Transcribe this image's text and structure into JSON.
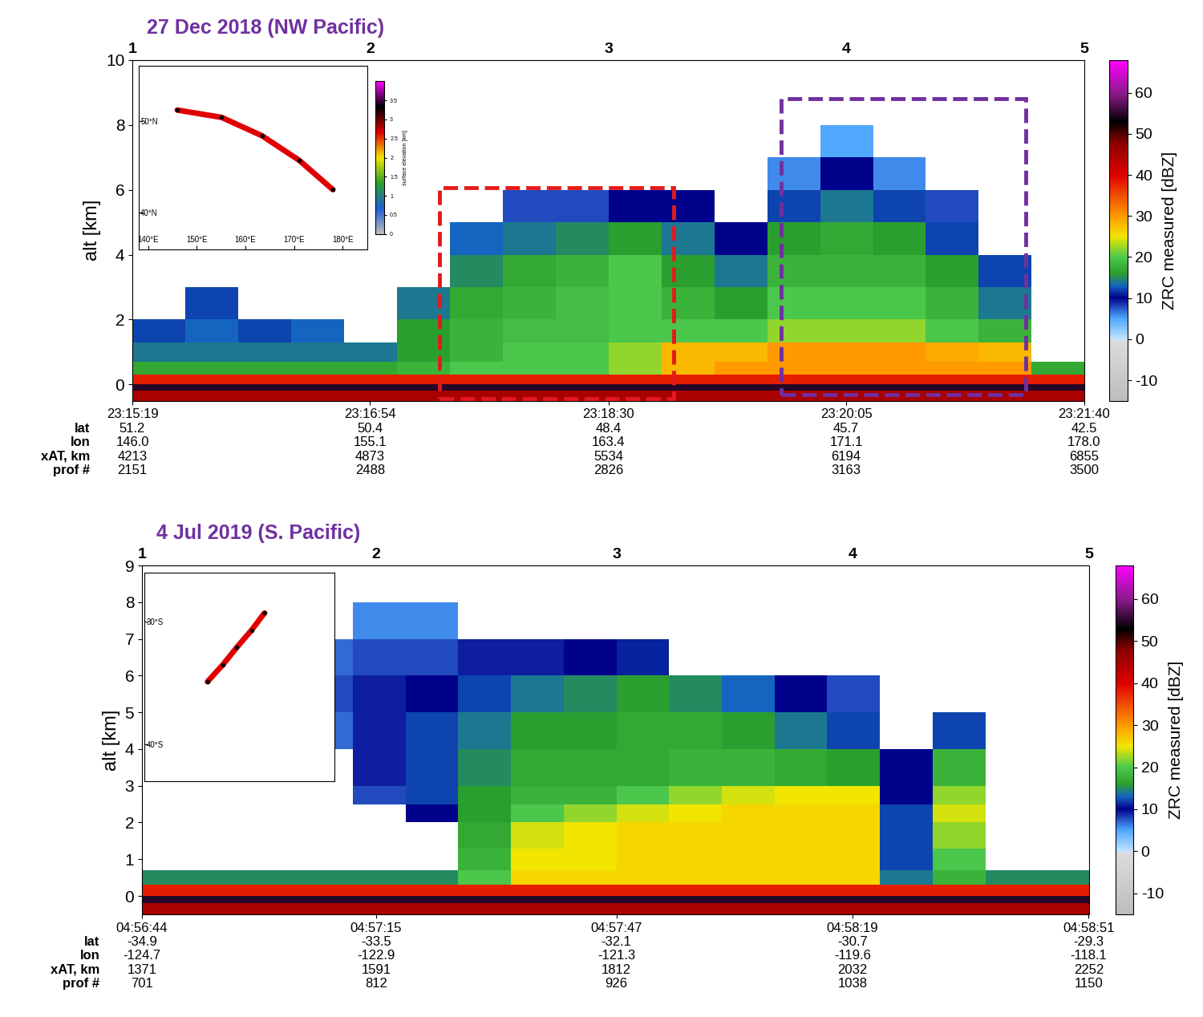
{
  "chart_data": [
    {
      "type": "heatmap",
      "title": "27 Dec 2018 (NW Pacific)",
      "y_label": "alt [km]",
      "xlim": [
        2151,
        3500
      ],
      "ylim": [
        -0.5,
        10
      ],
      "yticks": [
        0,
        2,
        4,
        6,
        8,
        10
      ],
      "xticks": [
        {
          "value": 2151,
          "label": "23:15:19\n51.2\n146.0\n4213\n2151"
        },
        {
          "value": 2488,
          "label": "23:16:54\n50.4\n155.1\n4873\n2488"
        },
        {
          "value": 2826,
          "label": "23:18:30\n48.4\n163.4\n5534\n2826"
        },
        {
          "value": 3163,
          "label": "23:20:05\n45.7\n171.1\n6194\n3163"
        },
        {
          "value": 3500,
          "label": "23:21:40\n42.5\n178.0\n6855\n3500"
        }
      ],
      "row_names": [
        "lat",
        "lon",
        "xAT, km",
        "prof #"
      ],
      "top_ticks": [
        1,
        2,
        3,
        4,
        5
      ],
      "x_edges": [
        2151,
        2226,
        2301,
        2376,
        2451,
        2526,
        2601,
        2676,
        2751,
        2826,
        2901,
        2976,
        3051,
        3126,
        3201,
        3276,
        3351,
        3426,
        3501
      ],
      "alt_edges": [
        -0.5,
        -0.2,
        0,
        0.3,
        0.7,
        1.3,
        2,
        3,
        4,
        5,
        6,
        7,
        8,
        10
      ],
      "cells": [
        [
          45,
          45,
          45,
          45,
          45,
          45,
          45,
          45,
          45,
          45,
          45,
          45,
          45,
          45,
          45,
          45,
          45,
          45
        ],
        [
          55,
          55,
          55,
          55,
          55,
          55,
          55,
          55,
          55,
          55,
          55,
          55,
          55,
          55,
          55,
          55,
          55,
          55
        ],
        [
          38,
          38,
          38,
          38,
          38,
          38,
          38,
          38,
          38,
          38,
          38,
          38,
          38,
          38,
          38,
          38,
          38,
          38
        ],
        [
          17,
          17,
          17,
          17,
          17,
          18,
          20,
          20,
          20,
          22,
          28,
          30,
          30,
          30,
          30,
          30,
          30,
          17
        ],
        [
          14,
          14,
          14,
          14,
          14,
          16,
          18,
          20,
          20,
          22,
          28,
          28,
          30,
          30,
          30,
          29,
          28,
          null
        ],
        [
          12,
          13,
          12,
          13,
          null,
          16,
          18,
          19,
          19,
          20,
          20,
          20,
          22,
          22,
          22,
          20,
          18,
          null
        ],
        [
          null,
          12,
          null,
          null,
          null,
          14,
          17,
          18,
          19,
          20,
          18,
          16,
          20,
          20,
          20,
          18,
          14,
          null
        ],
        [
          null,
          null,
          null,
          null,
          null,
          null,
          15,
          17,
          18,
          20,
          16,
          14,
          18,
          18,
          18,
          16,
          12,
          null
        ],
        [
          null,
          null,
          null,
          null,
          null,
          null,
          13,
          14,
          15,
          16,
          14,
          10,
          16,
          17,
          16,
          12,
          null,
          null
        ],
        [
          null,
          null,
          null,
          null,
          null,
          null,
          null,
          8,
          8,
          10,
          10,
          null,
          12,
          14,
          12,
          8,
          null,
          null
        ],
        [
          null,
          null,
          null,
          null,
          null,
          null,
          null,
          null,
          null,
          null,
          null,
          null,
          6,
          10,
          6,
          null,
          null,
          null
        ],
        [
          null,
          null,
          null,
          null,
          null,
          null,
          null,
          null,
          null,
          null,
          null,
          null,
          null,
          5,
          null,
          null,
          null,
          null
        ],
        [
          null,
          null,
          null,
          null,
          null,
          null,
          null,
          null,
          null,
          null,
          null,
          null,
          null,
          null,
          null,
          null,
          null,
          null
        ]
      ],
      "colorbar": {
        "label": "ZRC measured [dBZ]",
        "range": [
          -15,
          68
        ],
        "ticks": [
          -10,
          0,
          10,
          20,
          30,
          40,
          50,
          60
        ]
      },
      "regions": [
        {
          "color": "#e31a1c",
          "x": [
            2586,
            2918
          ],
          "alt": [
            -0.44,
            6.07
          ]
        },
        {
          "color": "#7030a0",
          "x": [
            3071,
            3418
          ],
          "alt": [
            -0.3,
            8.82
          ]
        }
      ],
      "inset": {
        "xlim": [
          138,
          185
        ],
        "ylim": [
          36,
          56
        ],
        "xticks": [
          {
            "value": 140,
            "label": "140°E"
          },
          {
            "value": 150,
            "label": "150°E"
          },
          {
            "value": 160,
            "label": "160°E"
          },
          {
            "value": 170,
            "label": "170°E"
          },
          {
            "value": 180,
            "label": "180°E"
          }
        ],
        "yticks": [
          {
            "value": 40,
            "label": "40°N"
          },
          {
            "value": 50,
            "label": "50°N"
          }
        ],
        "track": {
          "lon": [
            146.0,
            155.1,
            163.4,
            171.1,
            178.0
          ],
          "lat": [
            51.2,
            50.4,
            48.4,
            45.7,
            42.5
          ],
          "color": "#e00000"
        },
        "colorbar": {
          "label": "surface elevation [km]",
          "range": [
            0,
            4
          ],
          "ticks": [
            0,
            0.5,
            1,
            1.5,
            2,
            2.5,
            3,
            3.5
          ]
        }
      }
    },
    {
      "type": "heatmap",
      "title": "4 Jul 2019 (S. Pacific)",
      "y_label": "alt [km]",
      "xlim": [
        701,
        1150
      ],
      "ylim": [
        -0.5,
        9
      ],
      "yticks": [
        0,
        1,
        2,
        3,
        4,
        5,
        6,
        7,
        8,
        9
      ],
      "xticks": [
        {
          "value": 701,
          "label": "04:56:44\n-34.9\n-124.7\n1371\n701"
        },
        {
          "value": 812,
          "label": "04:57:15\n-33.5\n-122.9\n1591\n812"
        },
        {
          "value": 926,
          "label": "04:57:47\n-32.1\n-121.3\n1812\n926"
        },
        {
          "value": 1038,
          "label": "04:58:19\n-30.7\n-119.6\n2032\n1038"
        },
        {
          "value": 1150,
          "label": "04:58:51\n-29.3\n-118.1\n2252\n1150"
        }
      ],
      "row_names": [
        "lat",
        "lon",
        "xAT, km",
        "prof #"
      ],
      "top_ticks": [
        1,
        2,
        3,
        4,
        5
      ],
      "x_edges": [
        701,
        726,
        751,
        776,
        801,
        826,
        851,
        876,
        901,
        926,
        951,
        976,
        1001,
        1026,
        1051,
        1076,
        1101,
        1126,
        1151
      ],
      "alt_edges": [
        -0.5,
        -0.2,
        0,
        0.3,
        0.7,
        1.3,
        2,
        2.5,
        3,
        4,
        5,
        6,
        7,
        8,
        9
      ],
      "cells": [
        [
          45,
          45,
          45,
          45,
          45,
          45,
          45,
          45,
          45,
          45,
          45,
          45,
          45,
          45,
          45,
          45,
          45,
          45
        ],
        [
          55,
          55,
          55,
          55,
          55,
          55,
          55,
          55,
          55,
          55,
          55,
          55,
          55,
          55,
          55,
          55,
          55,
          55
        ],
        [
          38,
          38,
          38,
          38,
          38,
          38,
          38,
          38,
          38,
          38,
          38,
          38,
          38,
          38,
          38,
          38,
          38,
          38
        ],
        [
          15,
          15,
          15,
          15,
          15,
          15,
          20,
          26,
          26,
          26,
          26,
          26,
          26,
          26,
          14,
          18,
          15,
          15
        ],
        [
          null,
          null,
          null,
          null,
          null,
          null,
          18,
          25,
          25,
          26,
          26,
          26,
          26,
          26,
          12,
          20,
          null,
          null
        ],
        [
          null,
          null,
          null,
          null,
          null,
          null,
          17,
          24,
          25,
          26,
          26,
          26,
          26,
          26,
          12,
          22,
          null,
          null
        ],
        [
          null,
          null,
          null,
          null,
          null,
          10,
          16,
          20,
          22,
          24,
          25,
          26,
          26,
          26,
          12,
          24,
          null,
          null
        ],
        [
          null,
          null,
          null,
          null,
          8,
          12,
          16,
          18,
          18,
          20,
          22,
          24,
          25,
          25,
          10,
          22,
          null,
          null
        ],
        [
          null,
          null,
          null,
          null,
          9,
          12,
          15,
          17,
          17,
          17,
          18,
          18,
          17,
          16,
          10,
          18,
          null,
          null
        ],
        [
          null,
          null,
          null,
          7,
          9,
          12,
          14,
          16,
          16,
          17,
          17,
          16,
          14,
          12,
          null,
          12,
          null,
          null
        ],
        [
          null,
          null,
          null,
          8,
          9,
          10,
          12,
          14,
          15,
          16,
          15,
          13,
          10,
          8,
          null,
          null,
          null,
          null
        ],
        [
          null,
          null,
          null,
          7,
          8,
          8,
          9,
          9,
          10,
          11,
          null,
          null,
          null,
          null,
          null,
          null,
          null,
          null
        ],
        [
          null,
          null,
          null,
          null,
          6,
          6,
          null,
          null,
          null,
          null,
          null,
          null,
          null,
          null,
          null,
          null,
          null,
          null
        ],
        [
          null,
          null,
          null,
          null,
          null,
          null,
          null,
          null,
          null,
          null,
          null,
          null,
          null,
          null,
          null,
          null,
          null,
          null
        ]
      ],
      "colorbar": {
        "label": "ZRC measured [dBZ]",
        "range": [
          -15,
          68
        ],
        "ticks": [
          -10,
          0,
          10,
          20,
          30,
          40,
          50,
          60
        ]
      },
      "regions": [],
      "inset": {
        "xlim": [
          -132,
          -110
        ],
        "ylim": [
          -43,
          -26
        ],
        "xticks": [],
        "yticks": [
          {
            "value": -30,
            "label": "30°S"
          },
          {
            "value": -40,
            "label": "40°S"
          }
        ],
        "track": {
          "lon": [
            -124.7,
            -122.9,
            -121.3,
            -119.6,
            -118.1
          ],
          "lat": [
            -34.9,
            -33.5,
            -32.1,
            -30.7,
            -29.3
          ],
          "color": "#e00000"
        }
      }
    }
  ]
}
